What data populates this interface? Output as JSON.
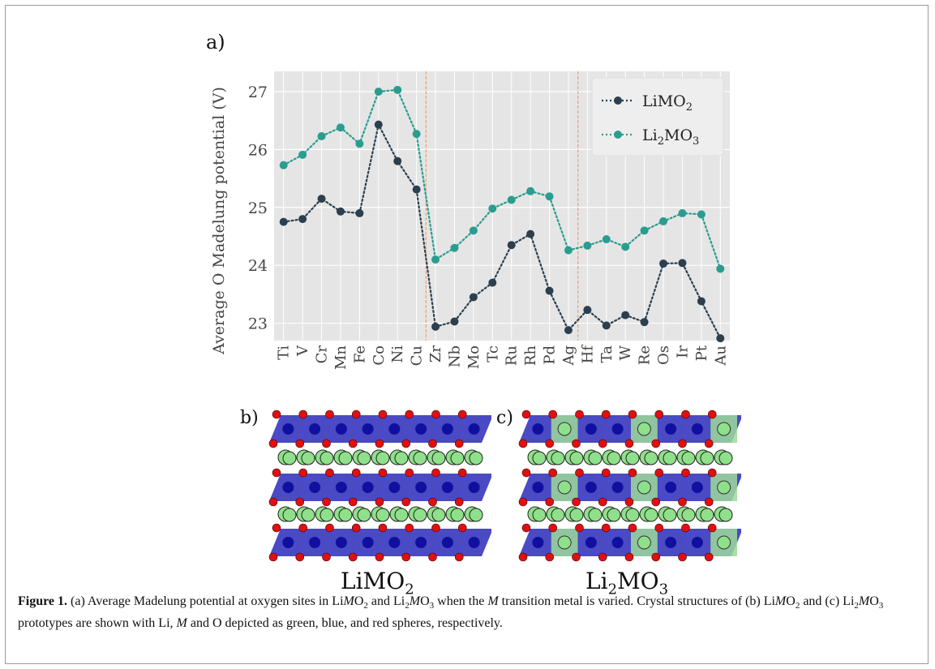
{
  "figure": {
    "panel_a_label": "a)",
    "panel_b_label": "b)",
    "panel_c_label": "c)",
    "structure_b_label": {
      "base": "LiMO",
      "sub": "2"
    },
    "structure_c_label": {
      "pre": "Li",
      "sub1": "2",
      "mid": "MO",
      "sub2": "3"
    }
  },
  "caption": {
    "head": "Figure 1.",
    "t1": " (a) Average Madelung potential at oxygen sites in Li",
    "t2": "O",
    "t3": " and Li",
    "t4": "O",
    "t5": " when the ",
    "t6": " transition metal is varied. Crystal structures of (b) Li",
    "t7": "O",
    "t8": " and (c) Li",
    "t9": "O",
    "t10": " prototypes are shown with Li, ",
    "t11": " and O depicted as green, blue, and red spheres, respectively.",
    "m": "M",
    "s2": "2",
    "s3": "3"
  },
  "colors": {
    "plot_bg": "#e5e5e5",
    "grid": "#ffffff",
    "series1": "#2b3f4e",
    "series2": "#2a9d8f",
    "divider": "#f0a070",
    "octa_blue": "#2a2ab8",
    "octa_green": "#9ed99a",
    "li_green": "#8fe08a",
    "oxygen_red": "#e01010"
  },
  "chart_data": {
    "type": "line",
    "ylabel": "Average O Madelung potential (V)",
    "categories": [
      "Ti",
      "V",
      "Cr",
      "Mn",
      "Fe",
      "Co",
      "Ni",
      "Cu",
      "Zr",
      "Nb",
      "Mo",
      "Tc",
      "Ru",
      "Rh",
      "Pd",
      "Ag",
      "Hf",
      "Ta",
      "W",
      "Re",
      "Os",
      "Ir",
      "Pt",
      "Au"
    ],
    "ylim": [
      22.7,
      27.35
    ],
    "yticks": [
      23,
      24,
      25,
      26,
      27
    ],
    "grid": true,
    "legend_position": "top-right",
    "dividers_between": [
      [
        7,
        8
      ],
      [
        15,
        16
      ]
    ],
    "series": [
      {
        "name": "LiMO",
        "name_sub": "2",
        "name_pre": "",
        "name_pre_sub": "",
        "color": "#2b3f4e",
        "values": [
          24.75,
          24.8,
          25.15,
          24.93,
          24.9,
          26.43,
          25.8,
          25.31,
          22.94,
          23.03,
          23.45,
          23.7,
          24.35,
          24.54,
          23.56,
          22.88,
          23.23,
          22.96,
          23.14,
          23.02,
          24.03,
          24.04,
          23.38,
          22.74
        ]
      },
      {
        "name": "MO",
        "name_sub": "3",
        "name_pre": "Li",
        "name_pre_sub": "2",
        "color": "#2a9d8f",
        "values": [
          25.73,
          25.91,
          26.23,
          26.38,
          26.1,
          27.0,
          27.03,
          26.27,
          24.1,
          24.3,
          24.6,
          24.98,
          25.13,
          25.28,
          25.19,
          24.26,
          24.34,
          24.45,
          24.32,
          24.6,
          24.76,
          24.9,
          24.88,
          23.94
        ]
      }
    ]
  }
}
